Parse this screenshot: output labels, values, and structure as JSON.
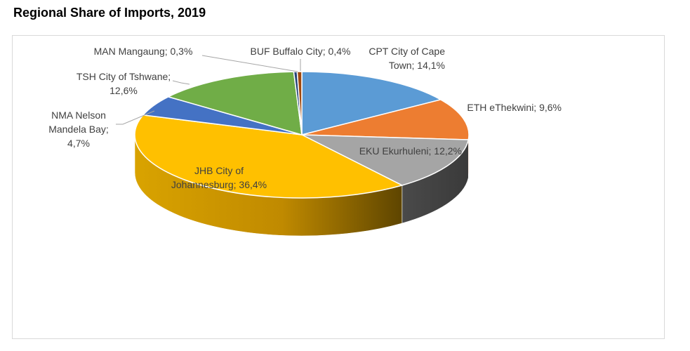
{
  "title": "Regional Share of Imports, 2019",
  "chart_data": {
    "type": "pie",
    "title": "Regional Share of Imports, 2019",
    "style": "3d",
    "slices": [
      {
        "code": "CPT",
        "name": "City of Cape Town",
        "value": 14.1,
        "label_lines": [
          "CPT City of Cape",
          "Town; 14,1%"
        ],
        "color": "#5b9bd5"
      },
      {
        "code": "ETH",
        "name": "eThekwini",
        "value": 9.6,
        "label_lines": [
          "ETH eThekwini; 9,6%"
        ],
        "color": "#ed7d31"
      },
      {
        "code": "EKU",
        "name": "Ekurhuleni",
        "value": 12.2,
        "label_lines": [
          "EKU Ekurhuleni; 12,2%"
        ],
        "color": "#a5a5a5"
      },
      {
        "code": "JHB",
        "name": "City of Johannesburg",
        "value": 36.4,
        "label_lines": [
          "JHB City of",
          "Johannesburg; 36,4%"
        ],
        "color": "#ffc000"
      },
      {
        "code": "NMA",
        "name": "Nelson Mandela Bay",
        "value": 4.7,
        "label_lines": [
          "NMA Nelson",
          "Mandela Bay;",
          "4,7%"
        ],
        "color": "#4472c4"
      },
      {
        "code": "TSH",
        "name": "City of Tshwane",
        "value": 12.6,
        "label_lines": [
          "TSH City of Tshwane;",
          "12,6%"
        ],
        "color": "#70ad47"
      },
      {
        "code": "MAN",
        "name": "Mangaung",
        "value": 0.3,
        "label_lines": [
          "MAN Mangaung; 0,3%"
        ],
        "color": "#264478"
      },
      {
        "code": "BUF",
        "name": "Buffalo City",
        "value": 0.4,
        "label_lines": [
          "BUF Buffalo City; 0,4%"
        ],
        "color": "#9e480e"
      }
    ]
  }
}
